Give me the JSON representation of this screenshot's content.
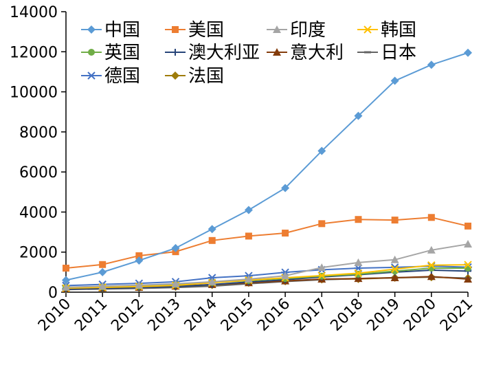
{
  "chart_data": {
    "type": "line",
    "categories": [
      "2010",
      "2011",
      "2012",
      "2013",
      "2014",
      "2015",
      "2016",
      "2017",
      "2018",
      "2019",
      "2020",
      "2021"
    ],
    "ylim": [
      0,
      14000
    ],
    "yticks": [
      0,
      2000,
      4000,
      6000,
      8000,
      10000,
      12000,
      14000
    ],
    "grid": false,
    "legend_position": "top",
    "series": [
      {
        "name": "中国",
        "color": "#5B9BD5",
        "marker": "diamond",
        "values": [
          600,
          1000,
          1580,
          2200,
          3150,
          4100,
          5200,
          7050,
          8800,
          10550,
          11350,
          11950
        ]
      },
      {
        "name": "美国",
        "color": "#ED7D31",
        "marker": "square",
        "values": [
          1200,
          1380,
          1820,
          2020,
          2580,
          2800,
          2950,
          3420,
          3630,
          3600,
          3730,
          3300
        ]
      },
      {
        "name": "印度",
        "color": "#A5A5A5",
        "marker": "triangle",
        "values": [
          250,
          300,
          350,
          420,
          520,
          650,
          820,
          1230,
          1480,
          1620,
          2100,
          2400
        ]
      },
      {
        "name": "韩国",
        "color": "#FFC000",
        "marker": "x",
        "values": [
          200,
          240,
          280,
          340,
          470,
          600,
          720,
          830,
          950,
          1150,
          1350,
          1370
        ]
      },
      {
        "name": "英国",
        "color": "#70AD47",
        "marker": "circle",
        "values": [
          230,
          260,
          300,
          380,
          480,
          580,
          680,
          800,
          900,
          1050,
          1200,
          1200
        ]
      },
      {
        "name": "澳大利亚",
        "color": "#264478",
        "marker": "plus",
        "values": [
          160,
          190,
          230,
          280,
          380,
          510,
          620,
          760,
          870,
          1000,
          1100,
          1050
        ]
      },
      {
        "name": "意大利",
        "color": "#843C0C",
        "marker": "triangle",
        "values": [
          180,
          210,
          240,
          300,
          380,
          470,
          560,
          650,
          680,
          720,
          780,
          650
        ]
      },
      {
        "name": "日本",
        "color": "#636363",
        "marker": "dash",
        "values": [
          130,
          160,
          190,
          230,
          300,
          420,
          530,
          620,
          680,
          720,
          760,
          700
        ]
      },
      {
        "name": "德国",
        "color": "#4472C4",
        "marker": "star",
        "values": [
          330,
          390,
          440,
          520,
          720,
          820,
          990,
          1120,
          1200,
          1240,
          1300,
          1250
        ]
      },
      {
        "name": "法国",
        "color": "#9E7C0A",
        "marker": "diamond",
        "values": [
          150,
          180,
          220,
          270,
          360,
          470,
          550,
          640,
          660,
          720,
          750,
          700
        ]
      }
    ]
  }
}
